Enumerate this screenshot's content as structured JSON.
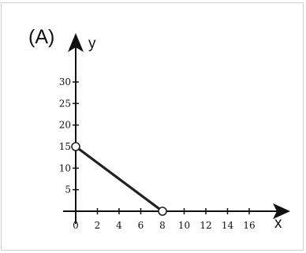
{
  "chart_data": {
    "type": "line",
    "panel_label": "(A)",
    "title": "",
    "xlabel": "x",
    "ylabel": "y",
    "xlim": [
      0,
      18
    ],
    "ylim": [
      0,
      35
    ],
    "x_ticks": [
      0,
      2,
      4,
      6,
      8,
      10,
      12,
      14,
      16
    ],
    "y_ticks": [
      5,
      10,
      15,
      20,
      25,
      30
    ],
    "x_tick_labels": [
      "0",
      "2",
      "4",
      "6",
      "8",
      "10",
      "12",
      "14",
      "16"
    ],
    "y_tick_labels": [
      "5",
      "10",
      "15",
      "20",
      "25",
      "30"
    ],
    "grid": false,
    "frame": true,
    "series": [
      {
        "x": [
          0,
          8
        ],
        "y": [
          15,
          0
        ],
        "endpoints": [
          "open",
          "open"
        ]
      }
    ]
  }
}
